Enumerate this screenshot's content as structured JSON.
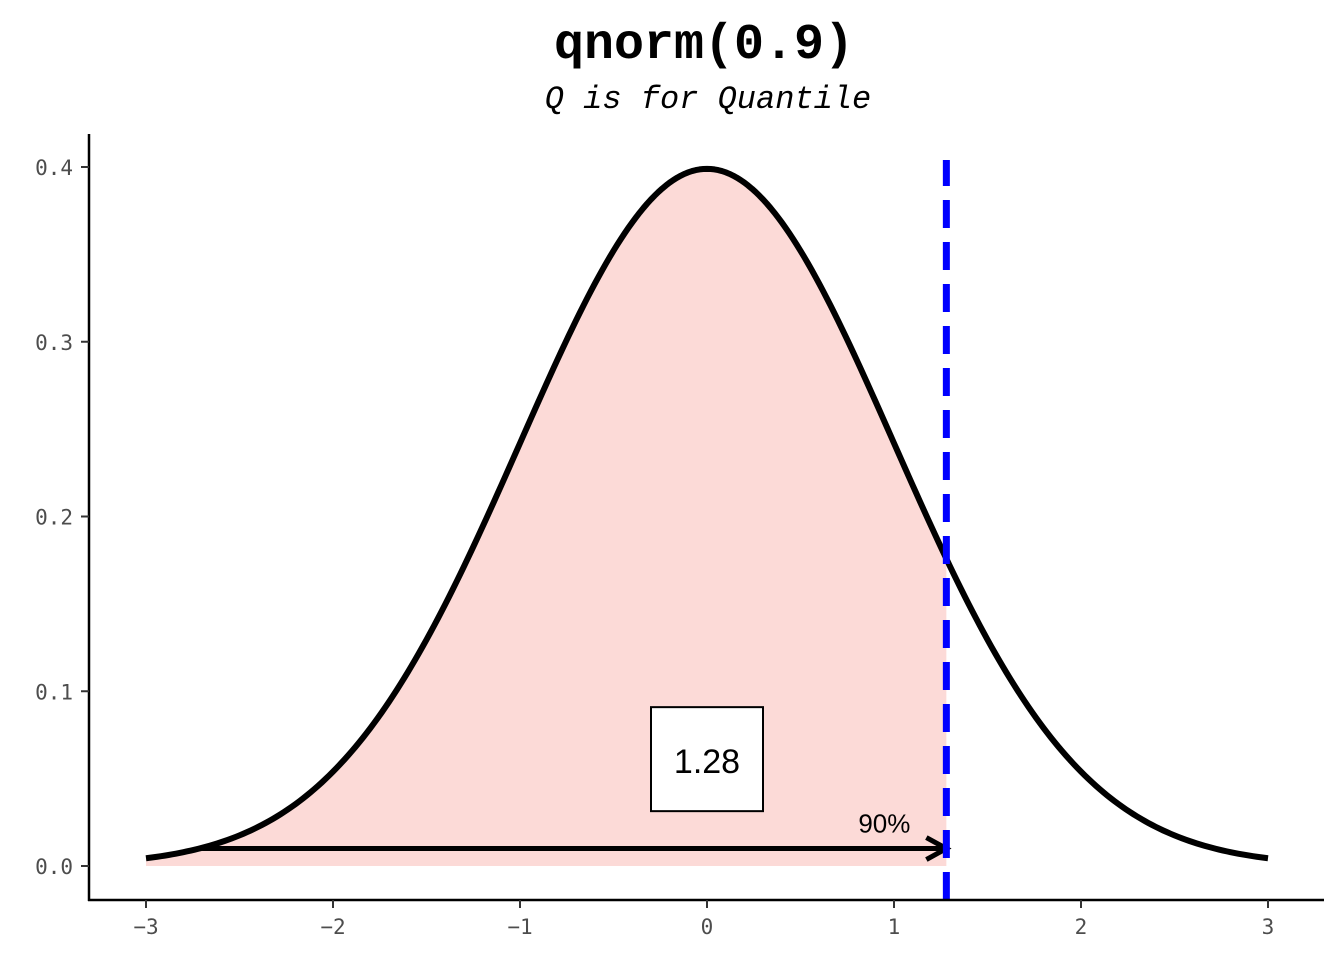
{
  "chart_data": {
    "type": "area",
    "title": "qnorm(0.9)",
    "subtitle": "Q is for Quantile",
    "xlabel": "",
    "ylabel": "",
    "xlim": [
      -3,
      3
    ],
    "ylim": [
      0,
      0.4
    ],
    "x_ticks": [
      -3,
      -2,
      -1,
      0,
      1,
      2,
      3
    ],
    "x_tick_labels": [
      "−3",
      "−2",
      "−1",
      "0",
      "1",
      "2",
      "3"
    ],
    "y_ticks": [
      0,
      0.1,
      0.2,
      0.3,
      0.4
    ],
    "y_tick_labels": [
      "0.0",
      "0.1",
      "0.2",
      "0.3",
      "0.4"
    ],
    "grid": false,
    "curve": {
      "name": "dnorm",
      "x": [
        -3,
        -2.75,
        -2.5,
        -2.25,
        -2,
        -1.75,
        -1.5,
        -1.25,
        -1,
        -0.75,
        -0.5,
        -0.25,
        0,
        0.25,
        0.5,
        0.75,
        1,
        1.25,
        1.5,
        1.75,
        2,
        2.25,
        2.5,
        2.75,
        3
      ],
      "y": [
        0.0044,
        0.0091,
        0.0175,
        0.0317,
        0.054,
        0.0863,
        0.1295,
        0.1826,
        0.242,
        0.3011,
        0.3521,
        0.3867,
        0.3989,
        0.3867,
        0.3521,
        0.3011,
        0.242,
        0.1826,
        0.1295,
        0.0863,
        0.054,
        0.0317,
        0.0175,
        0.0091,
        0.0044
      ],
      "color": "#000000"
    },
    "shaded_region": {
      "from": -3,
      "to": 1.28,
      "color": "#fcdad7"
    },
    "quantile_line": {
      "x": 1.28,
      "color": "#0000ff",
      "style": "dashed"
    },
    "arrow": {
      "x_start": -2.7,
      "x_end": 1.28,
      "y": 0.01,
      "label": "90%"
    },
    "annotation": {
      "x": 0,
      "y": 0.06,
      "text": "1.28"
    }
  }
}
